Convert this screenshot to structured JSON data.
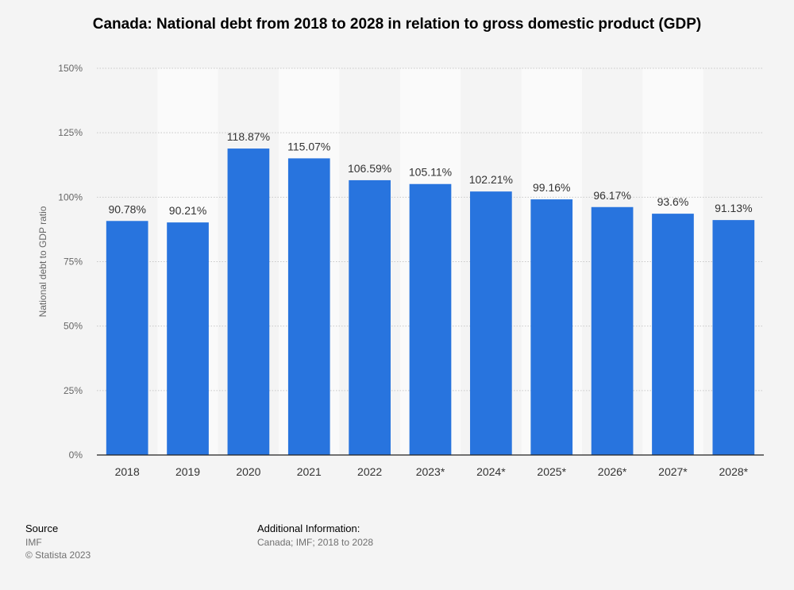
{
  "title": "Canada: National debt from 2018 to 2028 in relation to gross domestic product (GDP)",
  "chart_data": {
    "type": "bar",
    "categories": [
      "2018",
      "2019",
      "2020",
      "2021",
      "2022",
      "2023*",
      "2024*",
      "2025*",
      "2026*",
      "2027*",
      "2028*"
    ],
    "values": [
      90.78,
      90.21,
      118.87,
      115.07,
      106.59,
      105.11,
      102.21,
      99.16,
      96.17,
      93.6,
      91.13
    ],
    "value_labels": [
      "90.78%",
      "90.21%",
      "118.87%",
      "115.07%",
      "106.59%",
      "105.11%",
      "102.21%",
      "99.16%",
      "96.17%",
      "93.6%",
      "91.13%"
    ],
    "ylabel": "National debt to GDP ratio",
    "xlabel": "",
    "ylim": [
      0,
      150
    ],
    "yticks": [
      0,
      25,
      50,
      75,
      100,
      125,
      150
    ],
    "ytick_labels": [
      "0%",
      "25%",
      "50%",
      "75%",
      "100%",
      "125%",
      "150%"
    ],
    "bar_color": "#2874de",
    "alt_band_color": "#fafafa",
    "grid": true
  },
  "footer": {
    "source_label": "Source",
    "source_value": "IMF",
    "copyright": "© Statista 2023",
    "additional_label": "Additional Information:",
    "additional_value": "Canada; IMF; 2018 to 2028"
  }
}
